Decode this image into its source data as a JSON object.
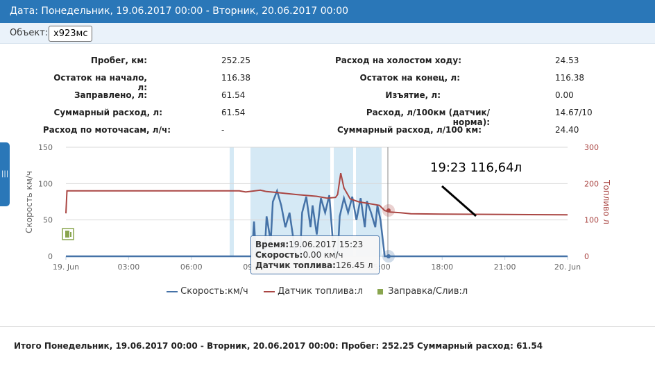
{
  "header": {
    "title": "Дата: Понедельник, 19.06.2017 00:00 - Вторник, 20.06.2017 00:00"
  },
  "object": {
    "label": "Объект:",
    "value": "х923мс"
  },
  "stats_left": [
    {
      "label": "Пробег, км:",
      "value": "252.25"
    },
    {
      "label": "Остаток на начало, л:",
      "value": "116.38"
    },
    {
      "label": "Заправлено, л:",
      "value": "61.54"
    },
    {
      "label": "Суммарный расход, л:",
      "value": "61.54"
    },
    {
      "label": "Расход по моточасам, л/ч:",
      "value": "-"
    }
  ],
  "stats_right": [
    {
      "label": "Расход на холостом ходу:",
      "value": "24.53"
    },
    {
      "label": "Остаток на конец, л:",
      "value": "116.38"
    },
    {
      "label": "Изъятие, л:",
      "value": "0.00"
    },
    {
      "label": "Расход, л/100км (датчик/норма):",
      "value": "14.67/10"
    },
    {
      "label": "Суммарный расход, л/100 км:",
      "value": "24.40"
    }
  ],
  "chart_data": {
    "type": "line",
    "x_unit": "hours since 19. Jun 00:00",
    "x_ticks": [
      "19. Jun",
      "03:00",
      "06:00",
      "09:00",
      "12:00",
      "15:00",
      "18:00",
      "21:00",
      "20. Jun"
    ],
    "x_range": [
      0,
      24
    ],
    "y_left": {
      "label": "Скорость км/ч",
      "range": [
        0,
        150
      ],
      "ticks": [
        "0",
        "50",
        "100",
        "150"
      ]
    },
    "y_right": {
      "label": "Топливо л",
      "range": [
        0,
        300
      ],
      "ticks": [
        "0",
        "100",
        "200",
        "300"
      ]
    },
    "series": [
      {
        "name": "Скорость:км/ч",
        "color": "#4572a7",
        "axis": "left",
        "points": [
          [
            0,
            0
          ],
          [
            8.9,
            0
          ],
          [
            9.0,
            48
          ],
          [
            9.1,
            0
          ],
          [
            9.5,
            0
          ],
          [
            9.6,
            55
          ],
          [
            9.8,
            20
          ],
          [
            9.9,
            75
          ],
          [
            10.1,
            90
          ],
          [
            10.3,
            70
          ],
          [
            10.5,
            40
          ],
          [
            10.7,
            60
          ],
          [
            10.9,
            20
          ],
          [
            11.0,
            0
          ],
          [
            11.2,
            0
          ],
          [
            11.3,
            60
          ],
          [
            11.5,
            82
          ],
          [
            11.7,
            40
          ],
          [
            11.8,
            70
          ],
          [
            12.0,
            30
          ],
          [
            12.2,
            80
          ],
          [
            12.4,
            60
          ],
          [
            12.6,
            84
          ],
          [
            12.8,
            10
          ],
          [
            13.0,
            0
          ],
          [
            13.1,
            55
          ],
          [
            13.3,
            80
          ],
          [
            13.5,
            60
          ],
          [
            13.7,
            82
          ],
          [
            13.9,
            50
          ],
          [
            14.1,
            80
          ],
          [
            14.3,
            40
          ],
          [
            14.4,
            76
          ],
          [
            14.6,
            60
          ],
          [
            14.8,
            40
          ],
          [
            14.9,
            70
          ],
          [
            15.05,
            50
          ],
          [
            15.25,
            0
          ],
          [
            24,
            0
          ]
        ]
      },
      {
        "name": "Датчик топлива:л",
        "color": "#aa4643",
        "axis": "right",
        "points": [
          [
            0,
            118
          ],
          [
            0.05,
            180
          ],
          [
            8.3,
            180
          ],
          [
            8.6,
            177
          ],
          [
            9.3,
            182
          ],
          [
            9.6,
            178
          ],
          [
            10.0,
            176
          ],
          [
            11.0,
            170
          ],
          [
            12.0,
            165
          ],
          [
            12.5,
            160
          ],
          [
            12.9,
            162
          ],
          [
            13.0,
            170
          ],
          [
            13.15,
            229
          ],
          [
            13.3,
            188
          ],
          [
            13.6,
            158
          ],
          [
            14.0,
            150
          ],
          [
            15.0,
            140
          ],
          [
            15.25,
            126
          ],
          [
            15.5,
            122
          ],
          [
            16.0,
            120
          ],
          [
            16.5,
            117
          ],
          [
            18.0,
            116
          ],
          [
            21.0,
            115
          ],
          [
            24.0,
            114
          ]
        ]
      }
    ],
    "markers": [
      {
        "name": "Заправка/Слив:л",
        "color": "#89a54e",
        "x_hour": 0.2
      }
    ],
    "tooltip": {
      "time_label": "Время:",
      "time": "19.06.2017 15:23",
      "speed_label": "Скорость:",
      "speed": "0.00 км/ч",
      "fuel_label": "Датчик топлива:",
      "fuel": "126.45 л"
    },
    "annotation": "19:23 116,64л"
  },
  "footer": {
    "summary": "Итого Понедельник, 19.06.2017 00:00 - Вторник, 20.06.2017 00:00: Пробег: 252.25 Суммарный расход: 61.54"
  }
}
